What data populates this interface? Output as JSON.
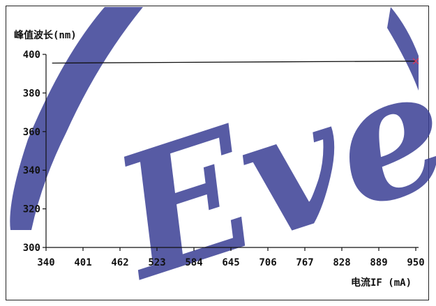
{
  "chart_data": {
    "type": "line",
    "ylabel": "峰值波长(nm)",
    "xlabel": "电流IF (mA)",
    "x_ticks": [
      340,
      401,
      462,
      523,
      584,
      645,
      706,
      767,
      828,
      889,
      950
    ],
    "y_ticks": [
      300,
      320,
      340,
      360,
      380,
      400
    ],
    "xlim": [
      340,
      950
    ],
    "ylim": [
      300,
      400
    ],
    "grid": false,
    "series": [
      {
        "values": [
          {
            "x": 350,
            "y": 395.5
          },
          {
            "x": 950,
            "y": 396.5
          }
        ],
        "color": "#111111",
        "end_marker": "x",
        "end_marker_color": "#d43b5a"
      }
    ]
  },
  "watermark": {
    "text": "Everlight",
    "color": "#3a3f95"
  }
}
